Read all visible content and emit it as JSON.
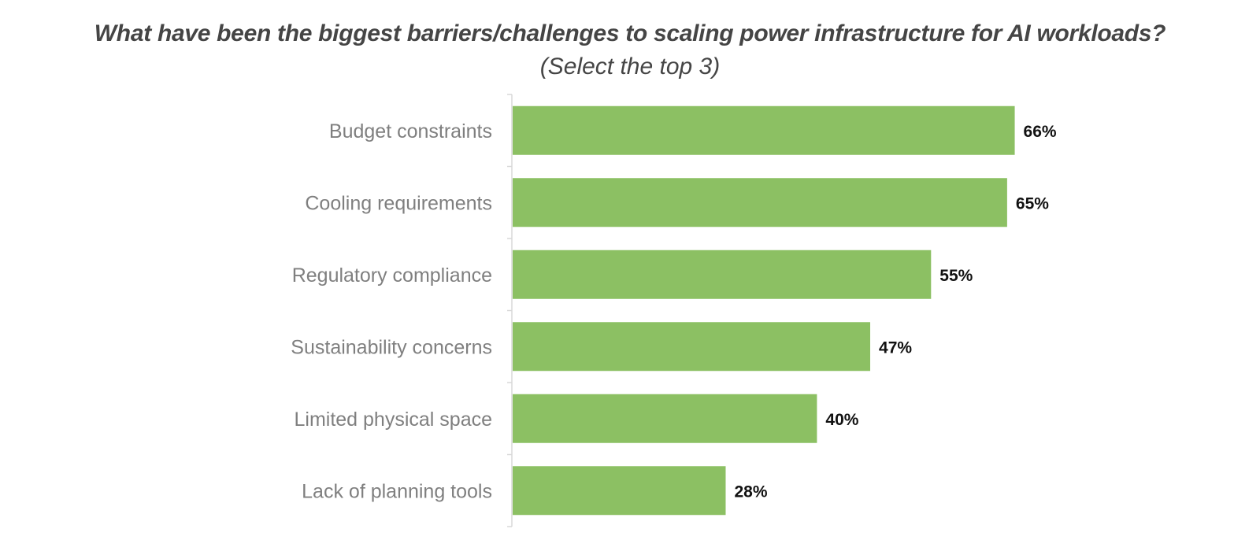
{
  "chart_data": {
    "type": "bar",
    "orientation": "horizontal",
    "title": "What have been the biggest barriers/challenges to scaling power infrastructure for AI workloads?",
    "subtitle": "(Select the top 3)",
    "categories": [
      "Budget constraints",
      "Cooling requirements",
      "Regulatory compliance",
      "Sustainability concerns",
      "Limited physical space",
      "Lack of planning tools"
    ],
    "values": [
      66,
      65,
      55,
      47,
      40,
      28
    ],
    "value_labels": [
      "66%",
      "65%",
      "55%",
      "47%",
      "40%",
      "28%"
    ],
    "xlim": [
      0,
      100
    ],
    "grid": false,
    "legend": "none",
    "bar_color": "#8cc063",
    "axis_color": "#d9d9d9"
  }
}
